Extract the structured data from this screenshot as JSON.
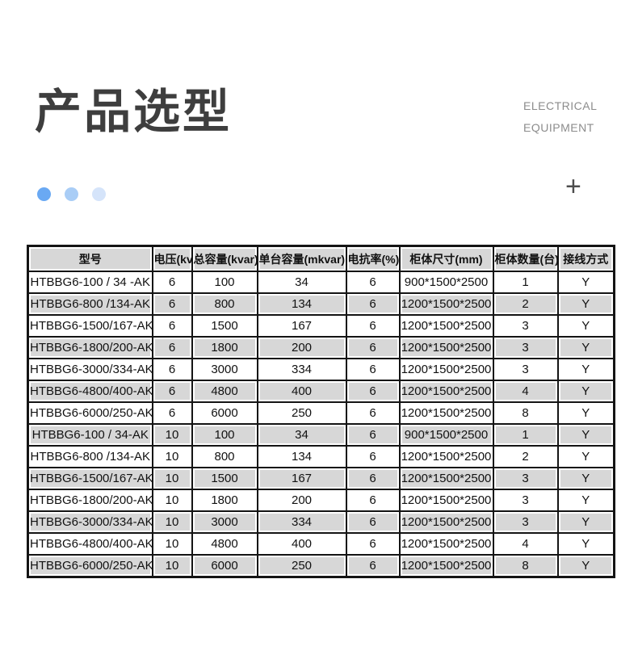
{
  "page": {
    "title": "产品选型",
    "subtitle_line1": "ELECTRICAL",
    "subtitle_line2": "EQUIPMENT",
    "plus_symbol": "+"
  },
  "colors": {
    "accent_dots": [
      "#6aa9f3",
      "#a9cdf6",
      "#d5e4fa"
    ],
    "row_shade": "#d7d7d7",
    "table_border": "#141414",
    "title_color": "#3e3e3e",
    "subtitle_color": "#8c8c8c"
  },
  "table": {
    "headers": [
      "型号",
      "电压(kv",
      "总容量(kvar)",
      "单台容量(mkvar)",
      "电抗率(%)",
      "柜体尺寸(mm)",
      "柜体数量(台)",
      "接线方式"
    ],
    "rows": [
      [
        "HTBBG6-100 / 34 -AK",
        "6",
        "100",
        "34",
        "6",
        "900*1500*2500",
        "1",
        "Y"
      ],
      [
        "HTBBG6-800 /134-AK",
        "6",
        "800",
        "134",
        "6",
        "1200*1500*2500",
        "2",
        "Y"
      ],
      [
        "HTBBG6-1500/167-AK",
        "6",
        "1500",
        "167",
        "6",
        "1200*1500*2500",
        "3",
        "Y"
      ],
      [
        "HTBBG6-1800/200-AK",
        "6",
        "1800",
        "200",
        "6",
        "1200*1500*2500",
        "3",
        "Y"
      ],
      [
        "HTBBG6-3000/334-AK",
        "6",
        "3000",
        "334",
        "6",
        "1200*1500*2500",
        "3",
        "Y"
      ],
      [
        "HTBBG6-4800/400-AK",
        "6",
        "4800",
        "400",
        "6",
        "1200*1500*2500",
        "4",
        "Y"
      ],
      [
        "HTBBG6-6000/250-AK",
        "6",
        "6000",
        "250",
        "6",
        "1200*1500*2500",
        "8",
        "Y"
      ],
      [
        "HTBBG6-100 / 34-AK",
        "10",
        "100",
        "34",
        "6",
        "900*1500*2500",
        "1",
        "Y"
      ],
      [
        "HTBBG6-800 /134-AK",
        "10",
        "800",
        "134",
        "6",
        "1200*1500*2500",
        "2",
        "Y"
      ],
      [
        "HTBBG6-1500/167-AK",
        "10",
        "1500",
        "167",
        "6",
        "1200*1500*2500",
        "3",
        "Y"
      ],
      [
        "HTBBG6-1800/200-AK",
        "10",
        "1800",
        "200",
        "6",
        "1200*1500*2500",
        "3",
        "Y"
      ],
      [
        "HTBBG6-3000/334-AK",
        "10",
        "3000",
        "334",
        "6",
        "1200*1500*2500",
        "3",
        "Y"
      ],
      [
        "HTBBG6-4800/400-AK",
        "10",
        "4800",
        "400",
        "6",
        "1200*1500*2500",
        "4",
        "Y"
      ],
      [
        "HTBBG6-6000/250-AK",
        "10",
        "6000",
        "250",
        "6",
        "1200*1500*2500",
        "8",
        "Y"
      ]
    ]
  }
}
